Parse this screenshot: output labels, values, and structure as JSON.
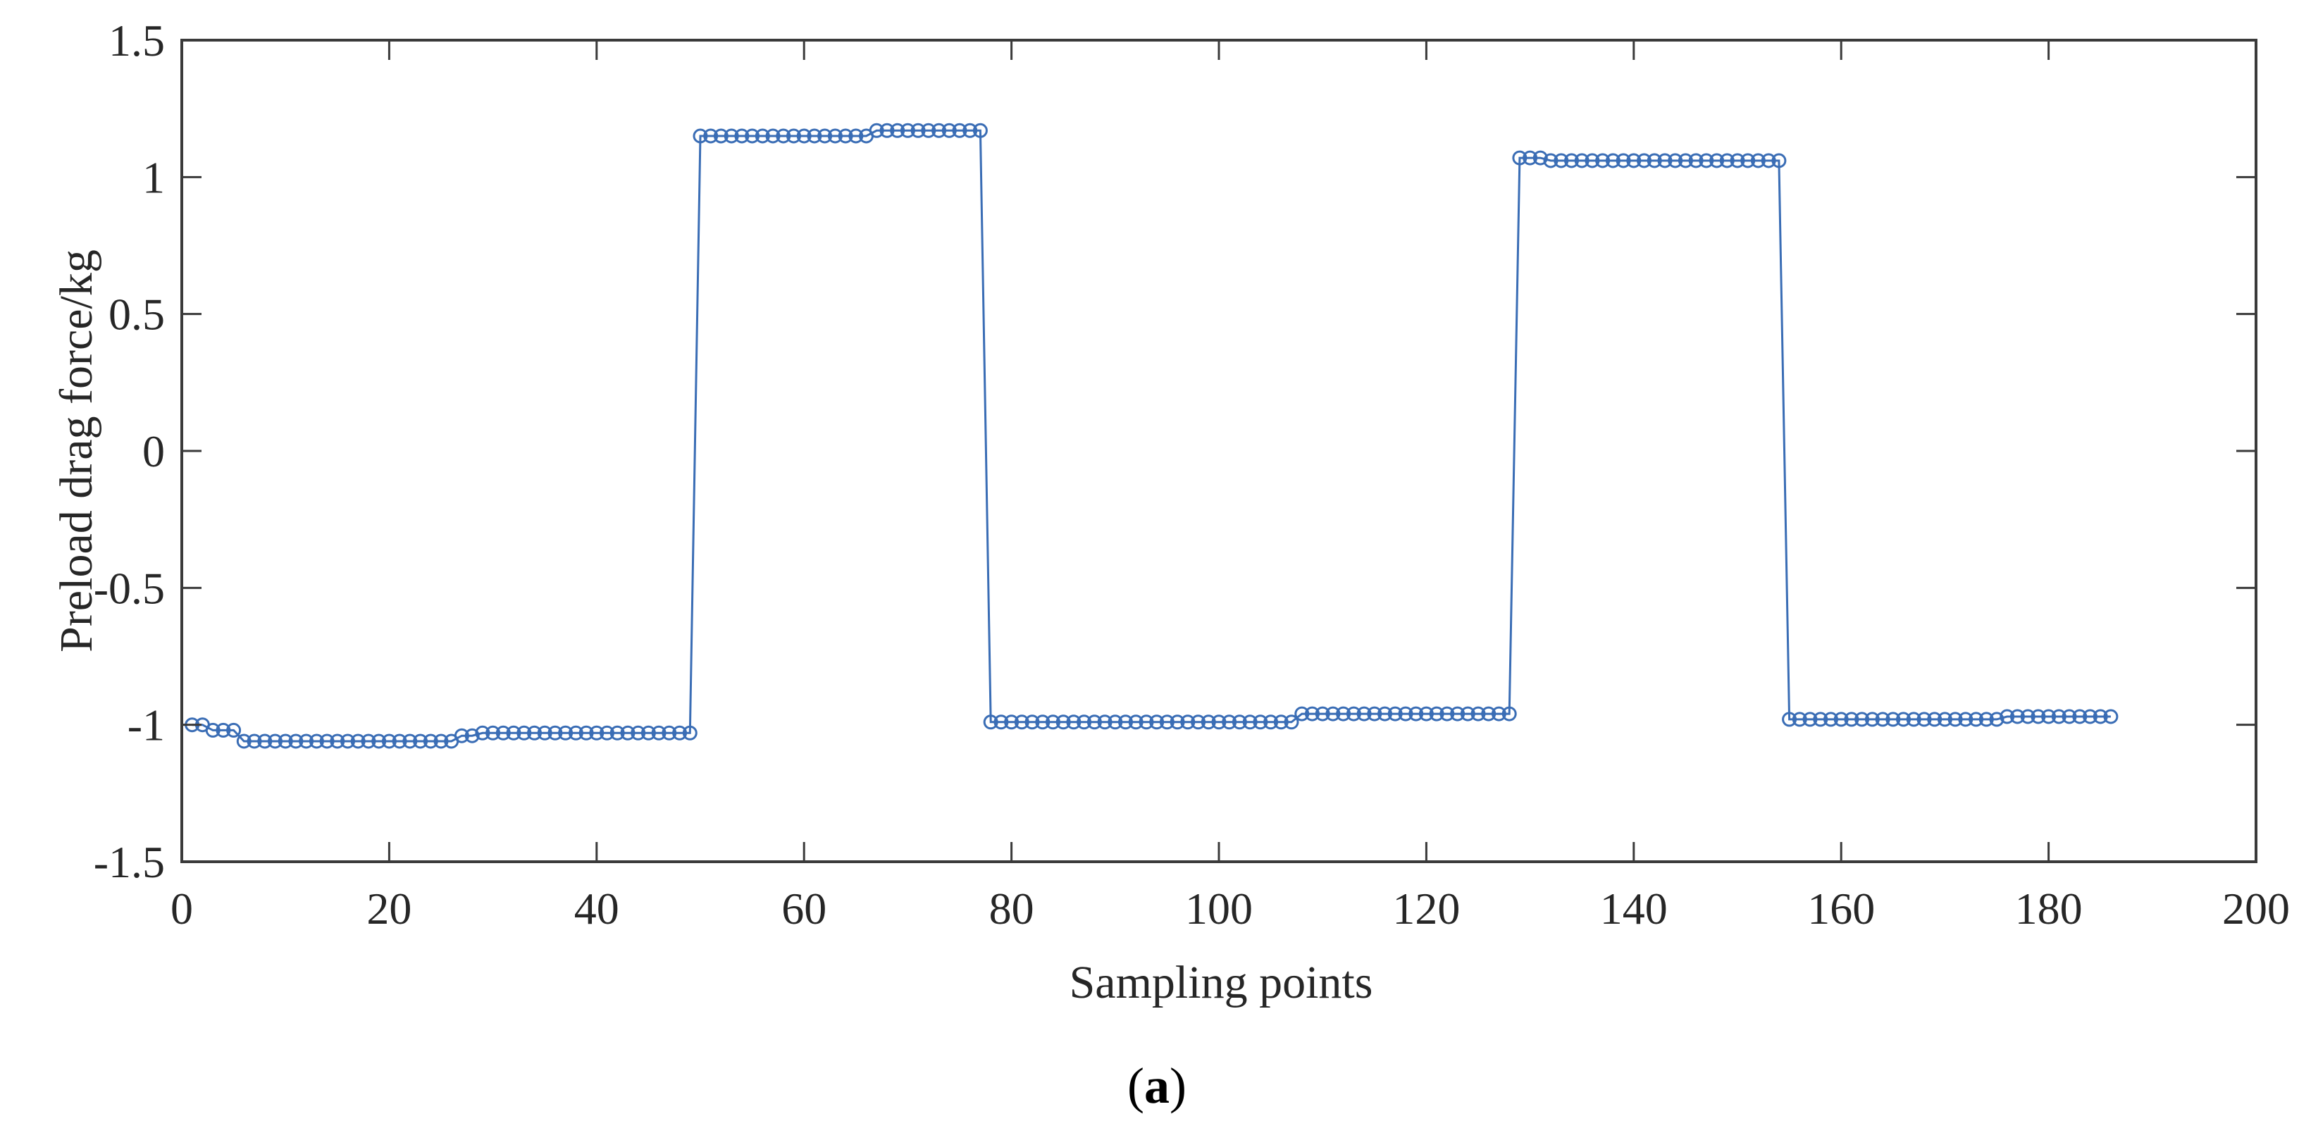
{
  "figure": {
    "caption_open": "(",
    "caption_letter": "a",
    "caption_close": ")"
  },
  "colors": {
    "series": "#3a6db5",
    "axis": "#3a3a3a",
    "text": "#262626",
    "background": "#ffffff"
  },
  "chart_data": {
    "type": "line",
    "title": "",
    "xlabel": "Sampling points",
    "ylabel": "Preload drag force/kg",
    "xlim": [
      0,
      200
    ],
    "ylim": [
      -1.5,
      1.5
    ],
    "xticks": [
      0,
      20,
      40,
      60,
      80,
      100,
      120,
      140,
      160,
      180,
      200
    ],
    "yticks": [
      -1.5,
      -1,
      -0.5,
      0,
      0.5,
      1,
      1.5
    ],
    "ytick_labels": [
      "-1.5",
      "-1",
      "-0.5",
      "0",
      "0.5",
      "1",
      "1.5"
    ],
    "grid": false,
    "legend": null,
    "marker": "circle-open",
    "series": [
      {
        "name": "Preload drag force",
        "segments": [
          {
            "x_start": 1,
            "x_end": 2,
            "y": -1.0
          },
          {
            "x_start": 3,
            "x_end": 5,
            "y": -1.02
          },
          {
            "x_start": 6,
            "x_end": 26,
            "y": -1.06
          },
          {
            "x_start": 27,
            "x_end": 28,
            "y": -1.04
          },
          {
            "x_start": 29,
            "x_end": 49,
            "y": -1.03
          },
          {
            "x_start": 50,
            "x_end": 66,
            "y": 1.15
          },
          {
            "x_start": 67,
            "x_end": 77,
            "y": 1.17
          },
          {
            "x_start": 78,
            "x_end": 107,
            "y": -0.99
          },
          {
            "x_start": 108,
            "x_end": 128,
            "y": -0.96
          },
          {
            "x_start": 129,
            "x_end": 131,
            "y": 1.07
          },
          {
            "x_start": 132,
            "x_end": 154,
            "y": 1.06
          },
          {
            "x_start": 155,
            "x_end": 175,
            "y": -0.98
          },
          {
            "x_start": 176,
            "x_end": 186,
            "y": -0.97
          }
        ]
      }
    ]
  }
}
